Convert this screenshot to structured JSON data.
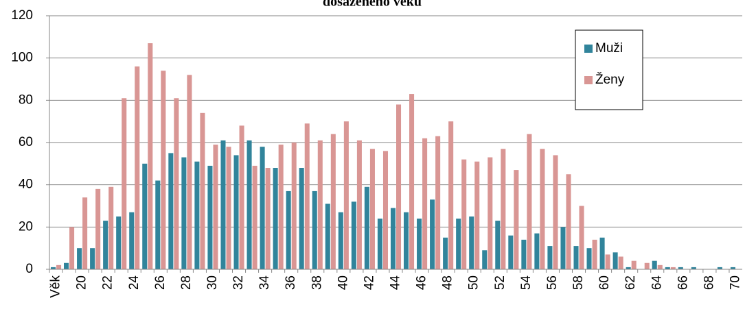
{
  "chart_data": {
    "type": "bar",
    "title": "dosaženého věku",
    "categories": [
      "Věk",
      null,
      "20",
      null,
      "22",
      null,
      "24",
      null,
      "26",
      null,
      "28",
      null,
      "30",
      null,
      "32",
      null,
      "34",
      null,
      "36",
      null,
      "38",
      null,
      "40",
      null,
      "42",
      null,
      "44",
      null,
      "46",
      null,
      "48",
      null,
      "50",
      null,
      "52",
      null,
      "54",
      null,
      "56",
      null,
      "58",
      null,
      "60",
      null,
      "62",
      null,
      "64",
      null,
      "66",
      null,
      "68",
      null,
      "70"
    ],
    "series": [
      {
        "name": "Muži",
        "color": "#31849b",
        "values": [
          1,
          3,
          10,
          10,
          23,
          25,
          27,
          50,
          42,
          55,
          53,
          51,
          49,
          61,
          54,
          61,
          58,
          48,
          37,
          48,
          37,
          31,
          27,
          32,
          39,
          24,
          29,
          27,
          24,
          33,
          15,
          24,
          25,
          9,
          23,
          16,
          14,
          17,
          11,
          20,
          11,
          10,
          15,
          8,
          1,
          0,
          4,
          1,
          1,
          1,
          0,
          1,
          1
        ]
      },
      {
        "name": "Ženy",
        "color": "#d99694",
        "values": [
          2,
          20,
          34,
          38,
          39,
          81,
          96,
          107,
          94,
          81,
          92,
          74,
          59,
          58,
          68,
          49,
          48,
          59,
          60,
          69,
          61,
          64,
          70,
          61,
          57,
          56,
          78,
          83,
          62,
          63,
          70,
          52,
          51,
          53,
          57,
          47,
          64,
          57,
          54,
          45,
          30,
          14,
          7,
          6,
          4,
          3,
          2,
          1,
          0,
          0,
          0,
          0,
          0
        ]
      }
    ],
    "ylim": [
      0,
      120
    ],
    "yticks": [
      0,
      20,
      40,
      60,
      80,
      100,
      120
    ],
    "grid": true,
    "legend": "upper right"
  }
}
